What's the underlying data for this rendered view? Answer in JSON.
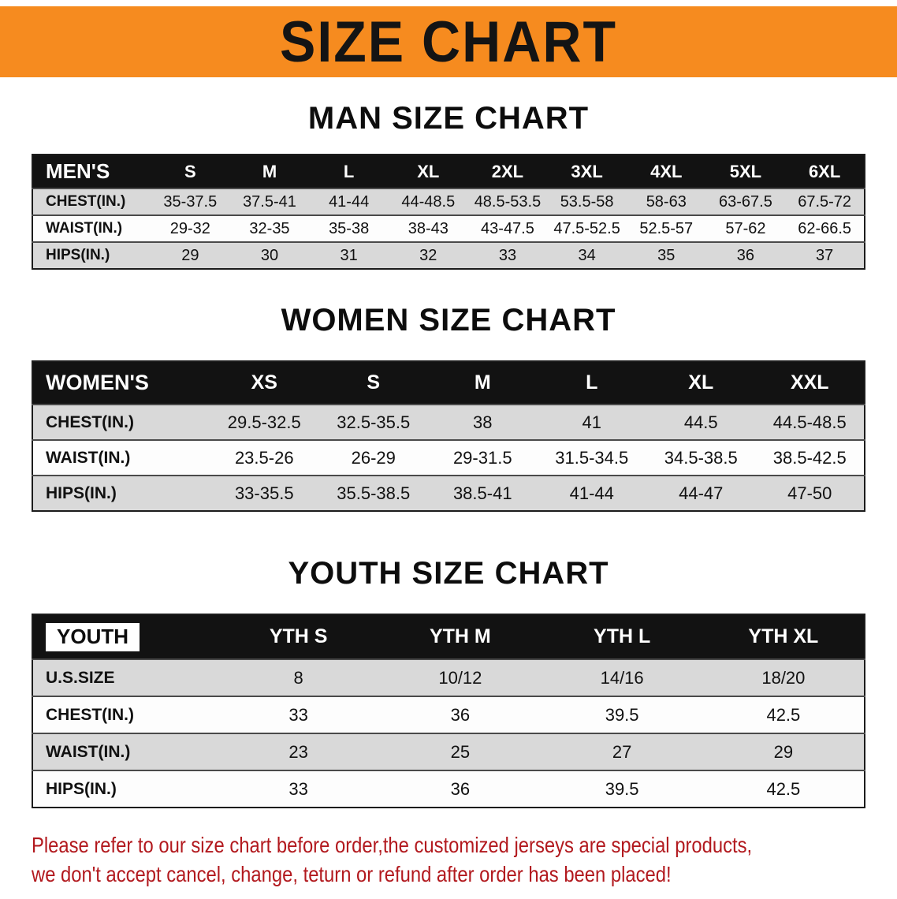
{
  "banner": {
    "title": "SIZE CHART"
  },
  "sections": [
    {
      "slug": "man",
      "heading": "MAN SIZE CHART",
      "table": {
        "header": [
          "MEN'S",
          "S",
          "M",
          "L",
          "XL",
          "2XL",
          "3XL",
          "4XL",
          "5XL",
          "6XL"
        ],
        "rows": [
          [
            "CHEST(IN.)",
            "35-37.5",
            "37.5-41",
            "41-44",
            "44-48.5",
            "48.5-53.5",
            "53.5-58",
            "58-63",
            "63-67.5",
            "67.5-72"
          ],
          [
            "WAIST(IN.)",
            "29-32",
            "32-35",
            "35-38",
            "38-43",
            "43-47.5",
            "47.5-52.5",
            "52.5-57",
            "57-62",
            "62-66.5"
          ],
          [
            "HIPS(IN.)",
            "29",
            "30",
            "31",
            "32",
            "33",
            "34",
            "35",
            "36",
            "37"
          ]
        ]
      }
    },
    {
      "slug": "women",
      "heading": "WOMEN SIZE CHART",
      "table": {
        "header": [
          "WOMEN'S",
          "XS",
          "S",
          "M",
          "L",
          "XL",
          "XXL"
        ],
        "rows": [
          [
            "CHEST(IN.)",
            "29.5-32.5",
            "32.5-35.5",
            "38",
            "41",
            "44.5",
            "44.5-48.5"
          ],
          [
            "WAIST(IN.)",
            "23.5-26",
            "26-29",
            "29-31.5",
            "31.5-34.5",
            "34.5-38.5",
            "38.5-42.5"
          ],
          [
            "HIPS(IN.)",
            "33-35.5",
            "35.5-38.5",
            "38.5-41",
            "41-44",
            "44-47",
            "47-50"
          ]
        ]
      }
    },
    {
      "slug": "youth",
      "heading": "YOUTH SIZE CHART",
      "table": {
        "header": [
          "YOUTH",
          "YTH S",
          "YTH M",
          "YTH L",
          "YTH XL"
        ],
        "rows": [
          [
            "U.S.SIZE",
            "8",
            "10/12",
            "14/16",
            "18/20"
          ],
          [
            "CHEST(IN.)",
            "33",
            "36",
            "39.5",
            "42.5"
          ],
          [
            "WAIST(IN.)",
            "23",
            "25",
            "27",
            "29"
          ],
          [
            "HIPS(IN.)",
            "33",
            "36",
            "39.5",
            "42.5"
          ]
        ]
      }
    }
  ],
  "disclaimer": {
    "line1": "Please refer to our size chart before order,the customized jerseys are special products,",
    "line2": "we don't accept cancel, change, teturn or refund after order has been placed!"
  },
  "colors": {
    "banner_orange": "#F68B1F",
    "header_black": "#121212",
    "row_gray": "#D9D9D9",
    "disclaimer_red": "#B2191E"
  }
}
